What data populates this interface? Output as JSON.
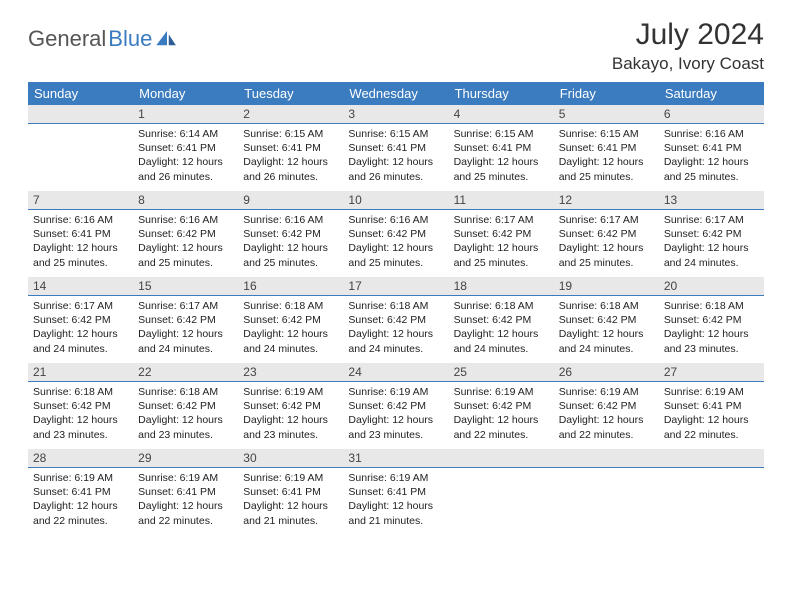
{
  "logo": {
    "text1": "General",
    "text2": "Blue",
    "shape_color": "#3b7bbf"
  },
  "title": "July 2024",
  "location": "Bakayo, Ivory Coast",
  "colors": {
    "header_bg": "#3b7bbf",
    "header_fg": "#ffffff",
    "daynum_bg": "#e8e8e8",
    "rule": "#3b7bbf"
  },
  "weekdays": [
    "Sunday",
    "Monday",
    "Tuesday",
    "Wednesday",
    "Thursday",
    "Friday",
    "Saturday"
  ],
  "weeks": [
    [
      {
        "n": "",
        "sr": "",
        "ss": "",
        "dl": ""
      },
      {
        "n": "1",
        "sr": "6:14 AM",
        "ss": "6:41 PM",
        "dl": "12 hours and 26 minutes."
      },
      {
        "n": "2",
        "sr": "6:15 AM",
        "ss": "6:41 PM",
        "dl": "12 hours and 26 minutes."
      },
      {
        "n": "3",
        "sr": "6:15 AM",
        "ss": "6:41 PM",
        "dl": "12 hours and 26 minutes."
      },
      {
        "n": "4",
        "sr": "6:15 AM",
        "ss": "6:41 PM",
        "dl": "12 hours and 25 minutes."
      },
      {
        "n": "5",
        "sr": "6:15 AM",
        "ss": "6:41 PM",
        "dl": "12 hours and 25 minutes."
      },
      {
        "n": "6",
        "sr": "6:16 AM",
        "ss": "6:41 PM",
        "dl": "12 hours and 25 minutes."
      }
    ],
    [
      {
        "n": "7",
        "sr": "6:16 AM",
        "ss": "6:41 PM",
        "dl": "12 hours and 25 minutes."
      },
      {
        "n": "8",
        "sr": "6:16 AM",
        "ss": "6:42 PM",
        "dl": "12 hours and 25 minutes."
      },
      {
        "n": "9",
        "sr": "6:16 AM",
        "ss": "6:42 PM",
        "dl": "12 hours and 25 minutes."
      },
      {
        "n": "10",
        "sr": "6:16 AM",
        "ss": "6:42 PM",
        "dl": "12 hours and 25 minutes."
      },
      {
        "n": "11",
        "sr": "6:17 AM",
        "ss": "6:42 PM",
        "dl": "12 hours and 25 minutes."
      },
      {
        "n": "12",
        "sr": "6:17 AM",
        "ss": "6:42 PM",
        "dl": "12 hours and 25 minutes."
      },
      {
        "n": "13",
        "sr": "6:17 AM",
        "ss": "6:42 PM",
        "dl": "12 hours and 24 minutes."
      }
    ],
    [
      {
        "n": "14",
        "sr": "6:17 AM",
        "ss": "6:42 PM",
        "dl": "12 hours and 24 minutes."
      },
      {
        "n": "15",
        "sr": "6:17 AM",
        "ss": "6:42 PM",
        "dl": "12 hours and 24 minutes."
      },
      {
        "n": "16",
        "sr": "6:18 AM",
        "ss": "6:42 PM",
        "dl": "12 hours and 24 minutes."
      },
      {
        "n": "17",
        "sr": "6:18 AM",
        "ss": "6:42 PM",
        "dl": "12 hours and 24 minutes."
      },
      {
        "n": "18",
        "sr": "6:18 AM",
        "ss": "6:42 PM",
        "dl": "12 hours and 24 minutes."
      },
      {
        "n": "19",
        "sr": "6:18 AM",
        "ss": "6:42 PM",
        "dl": "12 hours and 24 minutes."
      },
      {
        "n": "20",
        "sr": "6:18 AM",
        "ss": "6:42 PM",
        "dl": "12 hours and 23 minutes."
      }
    ],
    [
      {
        "n": "21",
        "sr": "6:18 AM",
        "ss": "6:42 PM",
        "dl": "12 hours and 23 minutes."
      },
      {
        "n": "22",
        "sr": "6:18 AM",
        "ss": "6:42 PM",
        "dl": "12 hours and 23 minutes."
      },
      {
        "n": "23",
        "sr": "6:19 AM",
        "ss": "6:42 PM",
        "dl": "12 hours and 23 minutes."
      },
      {
        "n": "24",
        "sr": "6:19 AM",
        "ss": "6:42 PM",
        "dl": "12 hours and 23 minutes."
      },
      {
        "n": "25",
        "sr": "6:19 AM",
        "ss": "6:42 PM",
        "dl": "12 hours and 22 minutes."
      },
      {
        "n": "26",
        "sr": "6:19 AM",
        "ss": "6:42 PM",
        "dl": "12 hours and 22 minutes."
      },
      {
        "n": "27",
        "sr": "6:19 AM",
        "ss": "6:41 PM",
        "dl": "12 hours and 22 minutes."
      }
    ],
    [
      {
        "n": "28",
        "sr": "6:19 AM",
        "ss": "6:41 PM",
        "dl": "12 hours and 22 minutes."
      },
      {
        "n": "29",
        "sr": "6:19 AM",
        "ss": "6:41 PM",
        "dl": "12 hours and 22 minutes."
      },
      {
        "n": "30",
        "sr": "6:19 AM",
        "ss": "6:41 PM",
        "dl": "12 hours and 21 minutes."
      },
      {
        "n": "31",
        "sr": "6:19 AM",
        "ss": "6:41 PM",
        "dl": "12 hours and 21 minutes."
      },
      {
        "n": "",
        "sr": "",
        "ss": "",
        "dl": ""
      },
      {
        "n": "",
        "sr": "",
        "ss": "",
        "dl": ""
      },
      {
        "n": "",
        "sr": "",
        "ss": "",
        "dl": ""
      }
    ]
  ],
  "labels": {
    "sunrise": "Sunrise:",
    "sunset": "Sunset:",
    "daylight": "Daylight:"
  }
}
